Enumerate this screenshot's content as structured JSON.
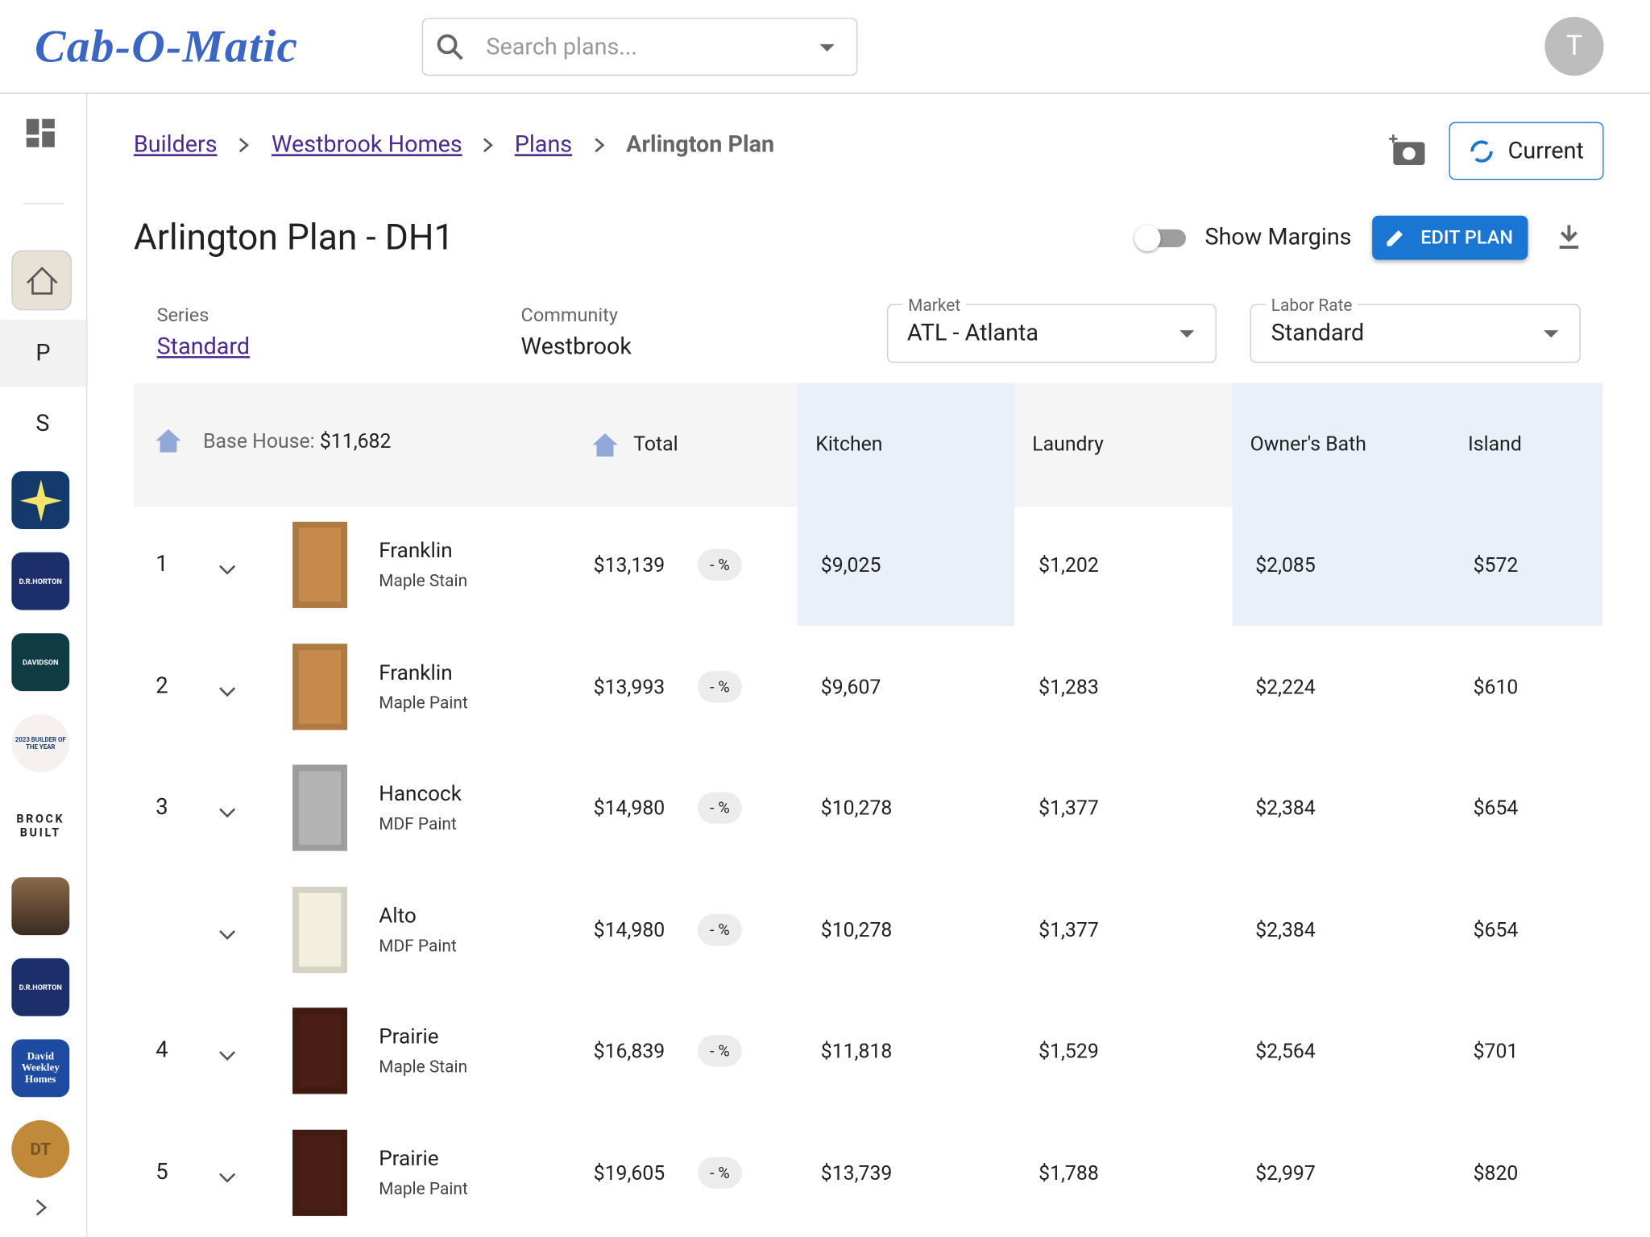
{
  "header": {
    "logo": "Cab-O-Matic",
    "search_placeholder": "Search plans...",
    "avatar": "T"
  },
  "sidebar": {
    "letters": [
      "P",
      "S"
    ],
    "tiles": [
      "D.R.HORTON",
      "DAVIDSON",
      "2023 BUILDER OF THE YEAR",
      "BROCK BUILT",
      "D.R.HORTON",
      "David Weekley Homes",
      "DT"
    ]
  },
  "breadcrumbs": [
    "Builders",
    "Westbrook Homes",
    "Plans",
    "Arlington Plan"
  ],
  "current_button": "Current",
  "title": "Arlington Plan - DH1",
  "show_margins": "Show Margins",
  "edit_button": "EDIT PLAN",
  "fields": {
    "series_label": "Series",
    "series_value": "Standard",
    "community_label": "Community",
    "community_value": "Westbrook",
    "market_label": "Market",
    "market_value": "ATL - Atlanta",
    "labor_label": "Labor Rate",
    "labor_value": "Standard"
  },
  "table": {
    "base_label": "Base House:",
    "base_value": "$11,682",
    "columns": [
      "Total",
      "Kitchen",
      "Laundry",
      "Owner's Bath",
      "Island"
    ],
    "rows": [
      {
        "index": "1",
        "door": "Franklin",
        "finish": "Maple Stain",
        "total": "$13,139",
        "pct": "- %",
        "cells": [
          "$9,025",
          "$1,202",
          "$2,085",
          "$572"
        ]
      },
      {
        "index": "2",
        "door": "Franklin",
        "finish": "Maple Paint",
        "total": "$13,993",
        "pct": "- %",
        "cells": [
          "$9,607",
          "$1,283",
          "$2,224",
          "$610"
        ]
      },
      {
        "index": "3",
        "door": "Hancock",
        "finish": "MDF Paint",
        "total": "$14,980",
        "pct": "- %",
        "cells": [
          "$10,278",
          "$1,377",
          "$2,384",
          "$654"
        ]
      },
      {
        "index": null,
        "door": "Alto",
        "finish": "MDF Paint",
        "total": "$14,980",
        "pct": "- %",
        "cells": [
          "$10,278",
          "$1,377",
          "$2,384",
          "$654"
        ]
      },
      {
        "index": "4",
        "door": "Prairie",
        "finish": "Maple Stain",
        "total": "$16,839",
        "pct": "- %",
        "cells": [
          "$11,818",
          "$1,529",
          "$2,564",
          "$701"
        ]
      },
      {
        "index": "5",
        "door": "Prairie",
        "finish": "Maple Paint",
        "total": "$19,605",
        "pct": "- %",
        "cells": [
          "$13,739",
          "$1,788",
          "$2,997",
          "$820"
        ]
      }
    ]
  }
}
